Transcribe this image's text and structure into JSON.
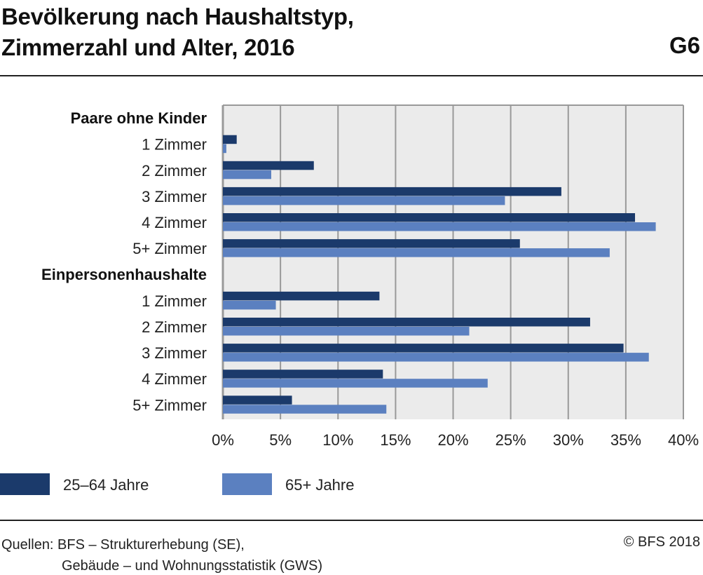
{
  "header": {
    "title_line1": "Bevölkerung nach Haushaltstyp,",
    "title_line2": "Zimmerzahl und Alter, 2016",
    "code": "G6"
  },
  "footer": {
    "source_line1": "Quellen: BFS – Strukturerhebung (SE),",
    "source_line2": "Gebäude – und Wohnungsstatistik (GWS)",
    "copyright": "© BFS 2018"
  },
  "chart_data": {
    "type": "bar",
    "orientation": "horizontal",
    "groups": [
      {
        "label": "Paare ohne Kinder",
        "categories": [
          "1 Zimmer",
          "2 Zimmer",
          "3 Zimmer",
          "4 Zimmer",
          "5+ Zimmer"
        ]
      },
      {
        "label": "Einpersonenhaushalte",
        "categories": [
          "1 Zimmer",
          "2 Zimmer",
          "3 Zimmer",
          "4 Zimmer",
          "5+ Zimmer"
        ]
      }
    ],
    "series": [
      {
        "name": "25–64 Jahre",
        "color": "#1b3a6b",
        "values": [
          1.2,
          7.9,
          29.4,
          35.8,
          25.8,
          13.6,
          31.9,
          34.8,
          13.9,
          6.0
        ]
      },
      {
        "name": "65+ Jahre",
        "color": "#5b80c0",
        "values": [
          0.3,
          4.2,
          24.5,
          37.6,
          33.6,
          4.6,
          21.4,
          37.0,
          23.0,
          14.2
        ]
      }
    ],
    "xlim": [
      0,
      40
    ],
    "xticks": [
      "0%",
      "5%",
      "10%",
      "15%",
      "20%",
      "25%",
      "30%",
      "35%",
      "40%"
    ],
    "grid": true,
    "legend": "bottom-left",
    "plot_background": "#ebebeb"
  }
}
